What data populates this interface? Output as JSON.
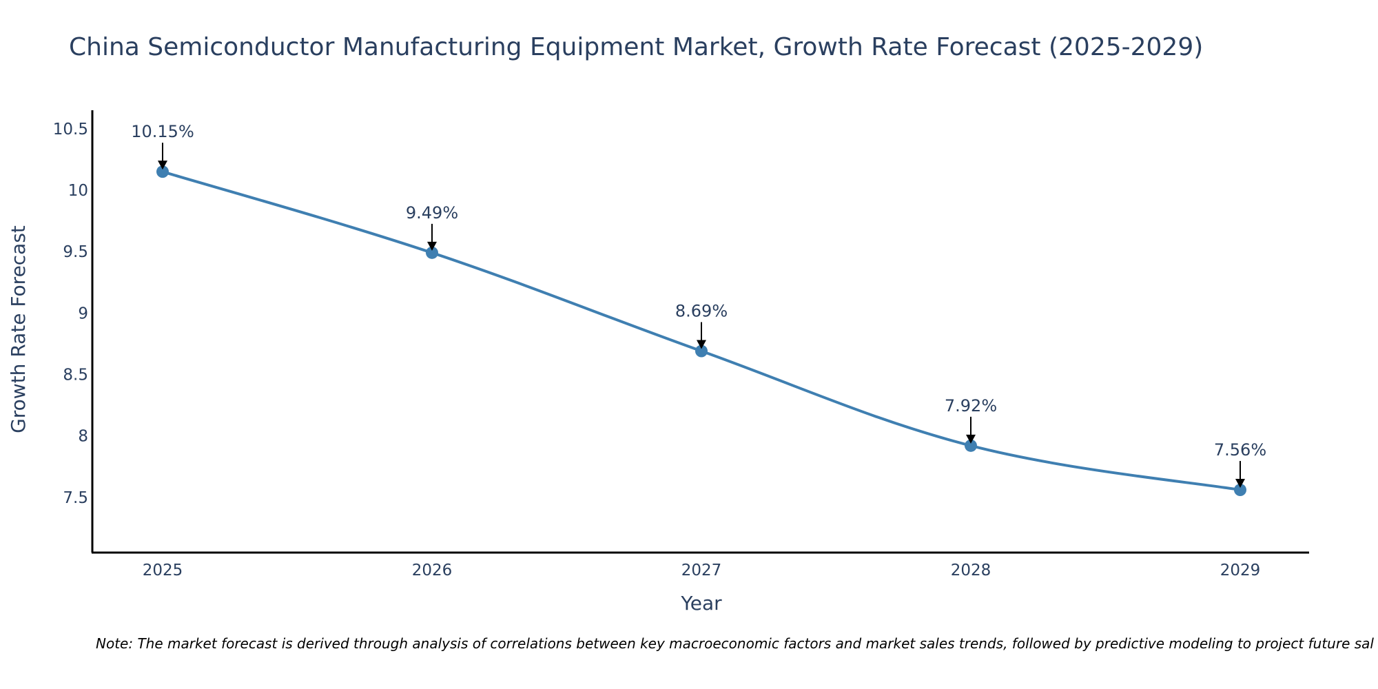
{
  "colors": {
    "line": "#3f7fb1",
    "marker": "#3f7fb1",
    "text": "#2a3f5f",
    "axis": "#000000",
    "arrow": "#000000"
  },
  "chart_data": {
    "type": "line",
    "title": "China Semiconductor Manufacturing Equipment Market, Growth Rate Forecast (2025-2029)",
    "xlabel": "Year",
    "ylabel": "Growth Rate Forecast",
    "categories": [
      "2025",
      "2026",
      "2027",
      "2028",
      "2029"
    ],
    "series": [
      {
        "name": "Growth Rate Forecast",
        "values": [
          10.15,
          9.49,
          8.69,
          7.92,
          7.56
        ],
        "labels": [
          "10.15%",
          "9.49%",
          "8.69%",
          "7.92%",
          "7.56%"
        ]
      }
    ],
    "yticks": [
      7.5,
      8,
      8.5,
      9,
      9.5,
      10,
      10.5
    ],
    "ytick_labels": [
      "7.5",
      "8",
      "8.5",
      "9",
      "9.5",
      "10",
      "10.5"
    ],
    "ylim": [
      7.05,
      10.65
    ],
    "grid": false,
    "note": "Note: The market forecast is derived through analysis of correlations between key macroeconomic factors and market sales trends, followed by predictive modeling to project future sal"
  }
}
